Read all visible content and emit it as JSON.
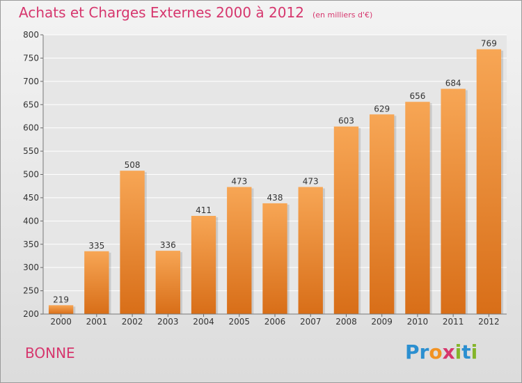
{
  "title": "Achats et Charges Externes 2000 à 2012",
  "unit": "(en milliers d'€)",
  "town": "BONNE",
  "brand": {
    "letters": [
      "P",
      "r",
      "o",
      "x",
      "i",
      "t",
      "i"
    ],
    "colors": [
      "#2b8fd0",
      "#2b8fd0",
      "#f29222",
      "#d6366d",
      "#84b52a",
      "#2b8fd0",
      "#84b52a"
    ]
  },
  "colors": {
    "bar_top": "#f7a655",
    "bar_bottom": "#d86e18",
    "accent": "#d6366d"
  },
  "chart_data": {
    "type": "bar",
    "categories": [
      "2000",
      "2001",
      "2002",
      "2003",
      "2004",
      "2005",
      "2006",
      "2007",
      "2008",
      "2009",
      "2010",
      "2011",
      "2012"
    ],
    "values": [
      219,
      335,
      508,
      336,
      411,
      473,
      438,
      473,
      603,
      629,
      656,
      684,
      769
    ],
    "ylim": [
      200,
      800
    ],
    "yticks": [
      200,
      250,
      300,
      350,
      400,
      450,
      500,
      550,
      600,
      650,
      700,
      750,
      800
    ],
    "grid": true,
    "data_labels": true,
    "xlabel": "",
    "ylabel": ""
  }
}
